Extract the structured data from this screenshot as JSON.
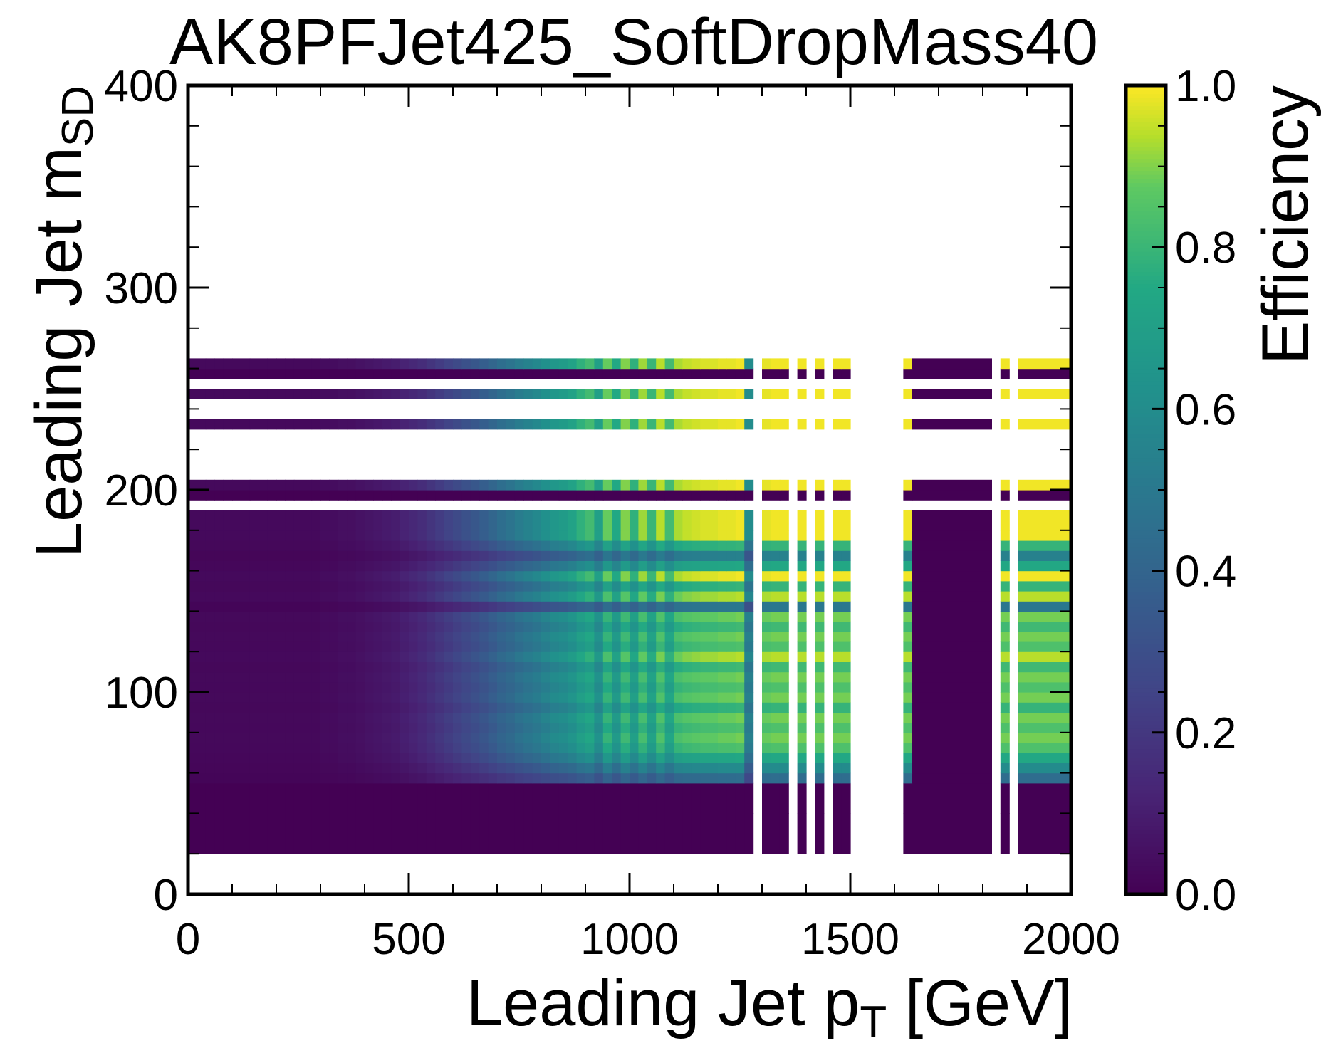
{
  "chart_data": {
    "type": "heatmap",
    "title": "AK8PFJet425_SoftDropMass40",
    "xlabel": {
      "main": "Leading Jet p",
      "sub": "T",
      "suffix": " [GeV]"
    },
    "ylabel": {
      "main": "Leading Jet m",
      "sub": "SD"
    },
    "colorbar_label": "Efficiency",
    "colormap": "viridis",
    "xlim": [
      0,
      2000
    ],
    "ylim": [
      0,
      400
    ],
    "zlim": [
      0,
      1
    ],
    "x_ticks": [
      0,
      500,
      1000,
      1500,
      2000
    ],
    "x_tick_labels": [
      "0",
      "500",
      "1000",
      "1500",
      "2000"
    ],
    "y_ticks": [
      0,
      100,
      200,
      300,
      400
    ],
    "y_tick_labels": [
      "0",
      "100",
      "200",
      "300",
      "400"
    ],
    "colorbar_ticks": [
      0.0,
      0.2,
      0.4,
      0.6,
      0.8,
      1.0
    ],
    "colorbar_tick_labels": [
      "0.0",
      "0.2",
      "0.4",
      "0.6",
      "0.8",
      "1.0"
    ],
    "x_bin_edges": [
      0,
      20,
      40,
      60,
      80,
      100,
      120,
      140,
      160,
      180,
      200,
      220,
      240,
      260,
      280,
      300,
      320,
      340,
      360,
      380,
      400,
      420,
      440,
      460,
      480,
      500,
      520,
      540,
      560,
      580,
      600,
      620,
      640,
      660,
      680,
      700,
      720,
      740,
      760,
      780,
      800,
      820,
      840,
      860,
      880,
      900,
      920,
      940,
      960,
      980,
      1000,
      1020,
      1040,
      1060,
      1080,
      1100,
      1120,
      1140,
      1160,
      1180,
      1200,
      1220,
      1240,
      1260,
      1280,
      1300,
      1320,
      1340,
      1360,
      1380,
      1400,
      1420,
      1440,
      1460,
      1480,
      1500,
      1620,
      1640,
      1820,
      1840,
      1860,
      1880,
      2000,
      2020
    ],
    "x_bin_values": [
      0.03,
      0.03,
      0.03,
      0.03,
      0.03,
      0.03,
      0.03,
      0.03,
      0.03,
      0.03,
      0.03,
      0.03,
      0.03,
      0.03,
      0.03,
      0.04,
      0.04,
      0.05,
      0.05,
      0.06,
      0.07,
      0.08,
      0.09,
      0.1,
      0.12,
      0.14,
      0.16,
      0.19,
      0.22,
      0.25,
      0.28,
      0.31,
      0.34,
      0.37,
      0.41,
      0.45,
      0.48,
      0.52,
      0.55,
      0.58,
      0.62,
      0.66,
      0.68,
      0.72,
      0.78,
      0.82,
      0.7,
      0.88,
      0.75,
      0.9,
      0.78,
      0.92,
      0.8,
      0.94,
      0.82,
      0.93,
      0.95,
      0.96,
      0.97,
      0.97,
      0.98,
      0.98,
      0.99,
      0.6,
      null,
      0.98,
      0.99,
      0.99,
      null,
      0.99,
      null,
      0.99,
      null,
      0.99,
      0.99,
      null,
      0.99,
      0.0,
      null,
      0.99,
      null,
      0.99,
      null,
      0.99
    ],
    "y_bins": [
      {
        "range": [
          20,
          40
        ],
        "level": 0.0
      },
      {
        "range": [
          40,
          55
        ],
        "level": 0.0
      },
      {
        "range": [
          55,
          60
        ],
        "level": 0.45
      },
      {
        "range": [
          60,
          65
        ],
        "level": 0.6
      },
      {
        "range": [
          65,
          70
        ],
        "level": 0.75
      },
      {
        "range": [
          70,
          75
        ],
        "level": 0.85
      },
      {
        "range": [
          75,
          80
        ],
        "level": 0.9
      },
      {
        "range": [
          80,
          85
        ],
        "level": 0.85
      },
      {
        "range": [
          85,
          90
        ],
        "level": 0.9
      },
      {
        "range": [
          90,
          95
        ],
        "level": 0.8
      },
      {
        "range": [
          95,
          100
        ],
        "level": 0.9
      },
      {
        "range": [
          100,
          105
        ],
        "level": 0.85
      },
      {
        "range": [
          105,
          110
        ],
        "level": 0.9
      },
      {
        "range": [
          110,
          115
        ],
        "level": 0.82
      },
      {
        "range": [
          115,
          120
        ],
        "level": 0.95
      },
      {
        "range": [
          120,
          125
        ],
        "level": 0.85
      },
      {
        "range": [
          125,
          130
        ],
        "level": 0.9
      },
      {
        "range": [
          130,
          135
        ],
        "level": 0.82
      },
      {
        "range": [
          135,
          140
        ],
        "level": 0.9
      },
      {
        "range": [
          140,
          145
        ],
        "level": 0.5
      },
      {
        "range": [
          145,
          150
        ],
        "level": 0.95
      },
      {
        "range": [
          150,
          155
        ],
        "level": 0.8
      },
      {
        "range": [
          155,
          160
        ],
        "level": 1.0
      },
      {
        "range": [
          160,
          165
        ],
        "level": 0.75
      },
      {
        "range": [
          165,
          170
        ],
        "level": 0.55
      },
      {
        "range": [
          170,
          175
        ],
        "level": 0.8
      },
      {
        "range": [
          175,
          180
        ],
        "level": 1.0
      },
      {
        "range": [
          180,
          190
        ],
        "level": 1.0
      },
      {
        "range": [
          195,
          200
        ],
        "level": 0.0
      },
      {
        "range": [
          200,
          205
        ],
        "level": 1.0
      },
      {
        "range": [
          230,
          235
        ],
        "level": 1.0
      },
      {
        "range": [
          245,
          250
        ],
        "level": 1.0
      },
      {
        "range": [
          255,
          260
        ],
        "level": 0.0
      },
      {
        "range": [
          260,
          265
        ],
        "level": 1.0
      }
    ]
  }
}
